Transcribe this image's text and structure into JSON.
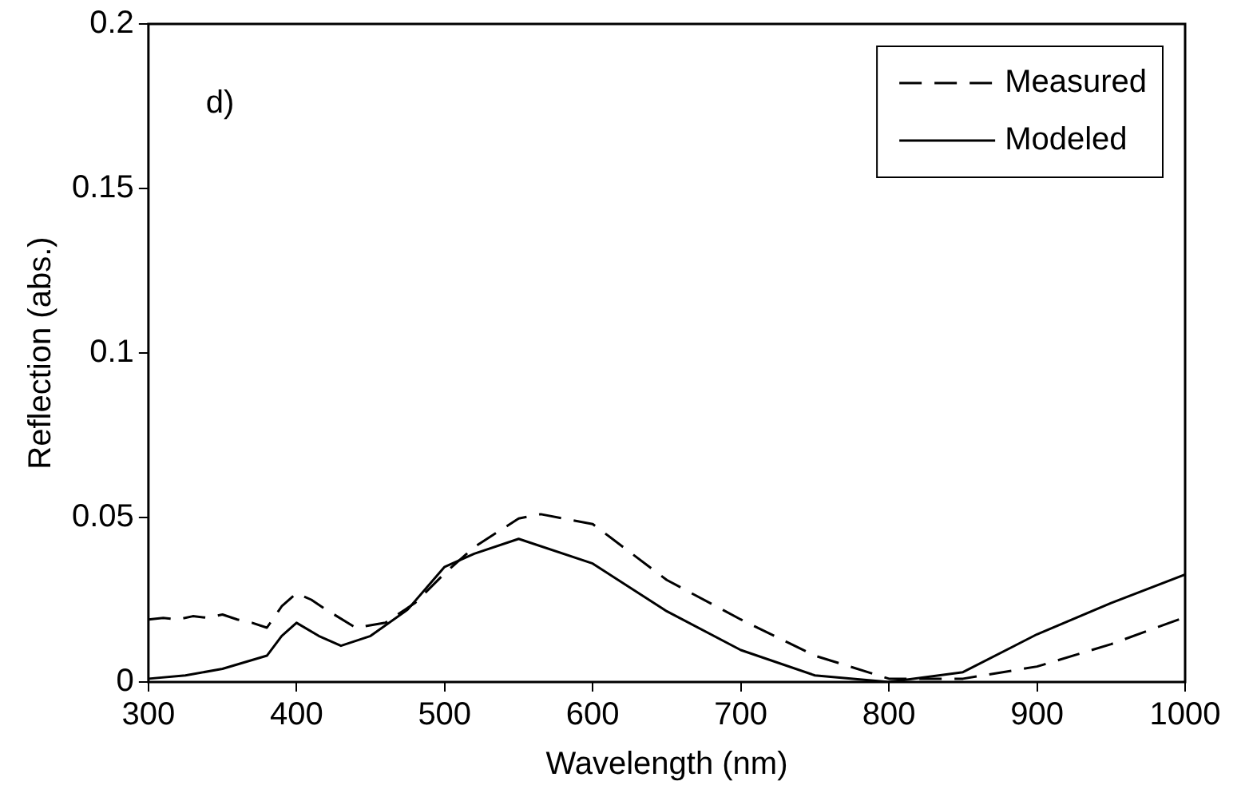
{
  "chart_data": {
    "type": "line",
    "xlabel": "Wavelength (nm)",
    "ylabel": "Reflection (abs.)",
    "annotations": [
      "d)"
    ],
    "xlim": [
      300,
      1000
    ],
    "xticks": [
      300,
      400,
      500,
      600,
      700,
      800,
      900,
      1000
    ],
    "ylim": [
      0,
      0.2
    ],
    "yticks": [
      0,
      0.05,
      0.1,
      0.15,
      0.2
    ],
    "legend": "top right",
    "marker": "none",
    "series": [
      {
        "name": "Measured",
        "color": "#000000",
        "line_style": "dashed",
        "x": [
          300,
          310,
          320,
          330,
          340,
          350,
          360,
          370,
          380,
          390,
          400,
          410,
          420,
          440,
          460,
          480,
          500,
          520,
          550,
          565,
          600,
          650,
          700,
          750,
          800,
          850,
          900,
          950,
          1000
        ],
        "values": [
          0.019,
          0.0195,
          0.019,
          0.02,
          0.0195,
          0.0205,
          0.019,
          0.018,
          0.0165,
          0.023,
          0.027,
          0.025,
          0.022,
          0.0165,
          0.018,
          0.024,
          0.033,
          0.041,
          0.0497,
          0.051,
          0.048,
          0.031,
          0.019,
          0.008,
          0.001,
          0.001,
          0.0047,
          0.0115,
          0.0197
        ]
      },
      {
        "name": "Modeled",
        "color": "#000000",
        "line_style": "solid",
        "x": [
          300,
          325,
          350,
          380,
          390,
          400,
          415,
          430,
          450,
          475,
          500,
          520,
          550,
          600,
          650,
          700,
          750,
          800,
          850,
          900,
          950,
          1000
        ],
        "values": [
          0.001,
          0.002,
          0.004,
          0.008,
          0.014,
          0.018,
          0.014,
          0.011,
          0.014,
          0.022,
          0.035,
          0.039,
          0.0435,
          0.036,
          0.0215,
          0.0097,
          0.002,
          0,
          0.003,
          0.0145,
          0.024,
          0.0327
        ]
      }
    ]
  }
}
